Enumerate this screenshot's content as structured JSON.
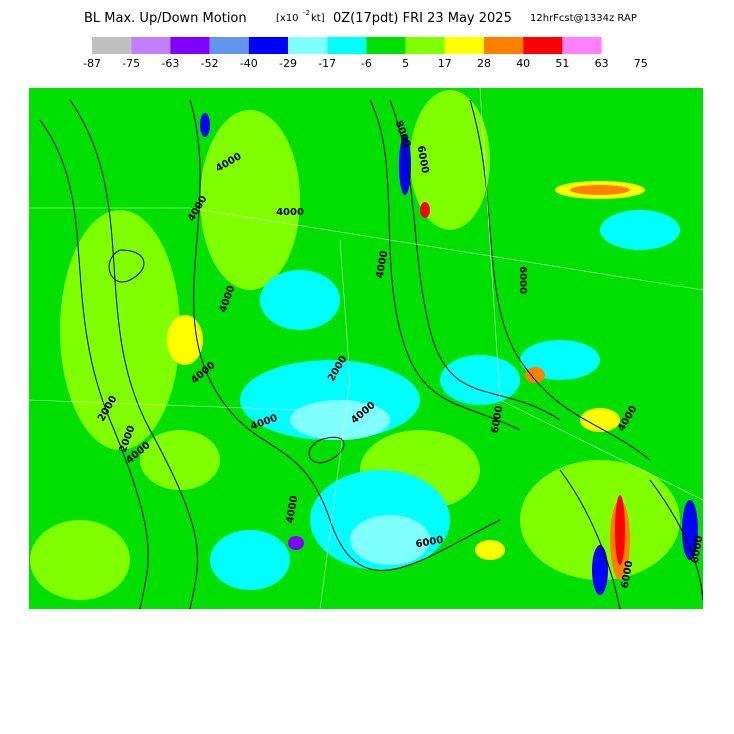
{
  "header": {
    "title": "BL Max. Up/Down Motion",
    "units_prefix": "[x10",
    "units_exponent": "-2",
    "units_suffix": "kt]",
    "valid_time": "0Z(17pdt) FRI 23 May 2025",
    "forecast": "12hrFcst@1334z RAP"
  },
  "colorbar": {
    "colors": [
      "#c0c0c0",
      "#c080ff",
      "#8000ff",
      "#6495ed",
      "#0000ff",
      "#80ffff",
      "#00ffff",
      "#00e000",
      "#80ff00",
      "#ffff00",
      "#ff8000",
      "#ff0000",
      "#ff80ff"
    ],
    "labels": [
      "-87",
      "-75",
      "-63",
      "-52",
      "-40",
      "-29",
      "-17",
      "-6",
      "5",
      "17",
      "28",
      "40",
      "51",
      "63",
      "75"
    ]
  },
  "map": {
    "contour_labels": [
      "4000",
      "4000",
      "4000",
      "2000",
      "4000",
      "2000",
      "4000",
      "4000",
      "4000",
      "2000",
      "4000",
      "6000",
      "6000",
      "4000",
      "8000",
      "6000",
      "4000",
      "6000",
      "4000",
      "6000",
      "6000"
    ]
  }
}
